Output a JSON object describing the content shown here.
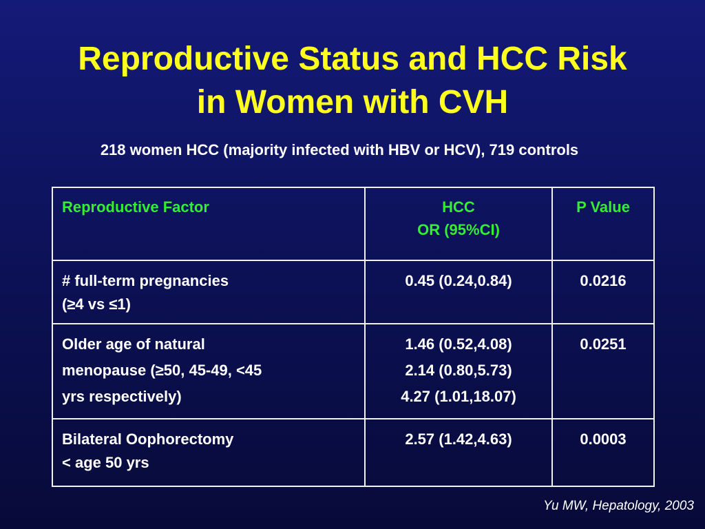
{
  "slide": {
    "title_lines": [
      "Reproductive Status and HCC Risk",
      "in Women with CVH"
    ],
    "subtitle": "218 women HCC (majority infected with HBV or HCV), 719 controls",
    "citation": "Yu MW, Hepatology, 2003"
  },
  "table": {
    "headers": [
      [
        "Reproductive Factor"
      ],
      [
        "HCC",
        "OR (95%CI)"
      ],
      [
        "P Value"
      ]
    ],
    "rows": [
      {
        "factor": [
          "# full-term pregnancies",
          "(≥4 vs ≤1)"
        ],
        "or": [
          "0.45 (0.24,0.84)"
        ],
        "p": "0.0216"
      },
      {
        "factor": [
          "Older age of natural",
          "menopause (≥50, 45-49, <45",
          "yrs respectively)"
        ],
        "or": [
          "1.46 (0.52,4.08)",
          "2.14 (0.80,5.73)",
          "4.27 (1.01,18.07)"
        ],
        "p": "0.0251"
      },
      {
        "factor": [
          "Bilateral Oophorectomy",
          "< age 50 yrs"
        ],
        "or": [
          "2.57 (1.42,4.63)"
        ],
        "p": "0.0003"
      }
    ]
  },
  "colors": {
    "title": "#ffff1f",
    "header_text": "#33ee33",
    "body_text": "#ffffff",
    "background_top": "#141a78",
    "background_bottom": "#070a38"
  }
}
